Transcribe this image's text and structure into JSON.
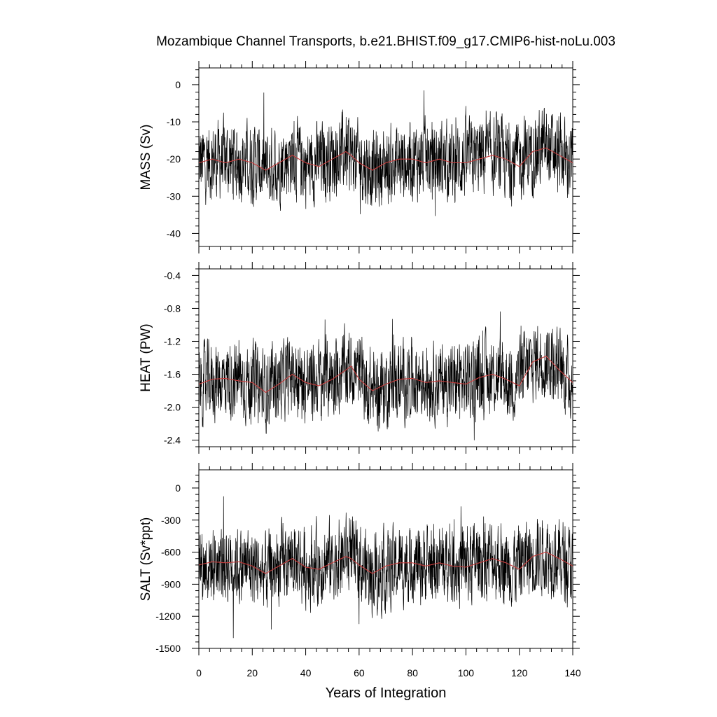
{
  "chart_data": [
    {
      "type": "line",
      "title": "Mozambique Channel Transports, b.e21.BHIST.f09_g17.CMIP6-hist-noLu.003",
      "ylabel": "MASS (Sv)",
      "xlabel": "",
      "xlim": [
        0,
        140
      ],
      "ylim": [
        -43.5,
        4.5
      ],
      "yticks": [
        0,
        -10,
        -20,
        -30,
        -40
      ],
      "ytick_labels": [
        "0",
        "-10",
        "-20",
        "-30",
        "-40"
      ],
      "x_step_years": 0.0833,
      "mean": -21,
      "series": [
        {
          "style": "raw-monthly",
          "color": "#000000",
          "range_min": -43.5,
          "range_max": 4.5,
          "anchors": [
            [
              0,
              -21
            ],
            [
              10,
              -20
            ],
            [
              20,
              -21
            ],
            [
              25,
              -23
            ],
            [
              35,
              -19
            ],
            [
              40,
              -22
            ],
            [
              55,
              -18
            ],
            [
              57,
              -19
            ],
            [
              65,
              -23
            ],
            [
              80,
              -20
            ],
            [
              95,
              -21
            ],
            [
              110,
              -19
            ],
            [
              118,
              -21
            ],
            [
              125,
              -18
            ],
            [
              130,
              -17
            ],
            [
              135,
              -19
            ],
            [
              140,
              -21
            ]
          ]
        },
        {
          "style": "running-mean",
          "color": "#c83c3c",
          "x": [
            0,
            5,
            10,
            15,
            20,
            25,
            30,
            35,
            40,
            45,
            50,
            55,
            57,
            60,
            65,
            70,
            75,
            80,
            85,
            90,
            95,
            100,
            105,
            110,
            115,
            120,
            125,
            130,
            135,
            140
          ],
          "values": [
            -21,
            -20,
            -21,
            -20,
            -21,
            -23,
            -21,
            -19,
            -21,
            -22,
            -20,
            -18,
            -19,
            -21,
            -23,
            -21,
            -20,
            -20,
            -21,
            -20,
            -21,
            -21,
            -20,
            -19,
            -20,
            -22,
            -18,
            -17,
            -19,
            -21
          ]
        }
      ]
    },
    {
      "type": "line",
      "title": "",
      "ylabel": "HEAT (PW)",
      "xlabel": "",
      "xlim": [
        0,
        140
      ],
      "ylim": [
        -2.48,
        -0.32
      ],
      "yticks": [
        -0.4,
        -0.8,
        -1.2,
        -1.6,
        -2.0,
        -2.4
      ],
      "ytick_labels": [
        "-0.4",
        "-0.8",
        "-1.2",
        "-1.6",
        "-2.0",
        "-2.4"
      ],
      "x_step_years": 0.0833,
      "mean": -1.7,
      "series": [
        {
          "style": "raw-monthly",
          "color": "#000000",
          "range_min": -2.48,
          "range_max": -0.32,
          "anchors": [
            [
              0,
              -1.72
            ],
            [
              10,
              -1.65
            ],
            [
              20,
              -1.7
            ],
            [
              25,
              -1.8
            ],
            [
              35,
              -1.6
            ],
            [
              40,
              -1.72
            ],
            [
              55,
              -1.55
            ],
            [
              57,
              -1.5
            ],
            [
              65,
              -1.8
            ],
            [
              80,
              -1.65
            ],
            [
              95,
              -1.7
            ],
            [
              110,
              -1.6
            ],
            [
              118,
              -1.7
            ],
            [
              125,
              -1.45
            ],
            [
              130,
              -1.38
            ],
            [
              135,
              -1.55
            ],
            [
              140,
              -1.7
            ]
          ]
        },
        {
          "style": "running-mean",
          "color": "#c83c3c",
          "x": [
            0,
            5,
            10,
            15,
            20,
            25,
            30,
            35,
            40,
            45,
            50,
            55,
            57,
            60,
            65,
            70,
            75,
            80,
            85,
            90,
            95,
            100,
            105,
            110,
            115,
            120,
            125,
            130,
            135,
            140
          ],
          "values": [
            -1.72,
            -1.66,
            -1.65,
            -1.68,
            -1.7,
            -1.82,
            -1.72,
            -1.6,
            -1.7,
            -1.74,
            -1.66,
            -1.55,
            -1.5,
            -1.66,
            -1.8,
            -1.72,
            -1.66,
            -1.65,
            -1.7,
            -1.68,
            -1.7,
            -1.72,
            -1.64,
            -1.6,
            -1.66,
            -1.74,
            -1.45,
            -1.38,
            -1.55,
            -1.7
          ]
        }
      ]
    },
    {
      "type": "line",
      "title": "",
      "ylabel": "SALT (Sv*ppt)",
      "xlabel": "Years of Integration",
      "xlim": [
        0,
        140
      ],
      "xticks": [
        0,
        20,
        40,
        60,
        80,
        100,
        120,
        140
      ],
      "xtick_labels": [
        "0",
        "20",
        "40",
        "60",
        "80",
        "100",
        "120",
        "140"
      ],
      "ylim": [
        -1500,
        170
      ],
      "yticks": [
        0,
        -300,
        -600,
        -900,
        -1200,
        -1500
      ],
      "ytick_labels": [
        "0",
        "-300",
        "-600",
        "-900",
        "-1200",
        "-1500"
      ],
      "x_step_years": 0.0833,
      "mean": -730,
      "series": [
        {
          "style": "raw-monthly",
          "color": "#000000",
          "range_min": -1500,
          "range_max": 170,
          "anchors": [
            [
              0,
              -720
            ],
            [
              10,
              -700
            ],
            [
              20,
              -730
            ],
            [
              25,
              -800
            ],
            [
              35,
              -660
            ],
            [
              40,
              -740
            ],
            [
              55,
              -640
            ],
            [
              57,
              -660
            ],
            [
              65,
              -800
            ],
            [
              80,
              -700
            ],
            [
              95,
              -730
            ],
            [
              110,
              -660
            ],
            [
              118,
              -730
            ],
            [
              125,
              -640
            ],
            [
              130,
              -600
            ],
            [
              135,
              -660
            ],
            [
              140,
              -730
            ]
          ]
        },
        {
          "style": "running-mean",
          "color": "#c83c3c",
          "x": [
            0,
            5,
            10,
            15,
            20,
            25,
            30,
            35,
            40,
            45,
            50,
            55,
            57,
            60,
            65,
            70,
            75,
            80,
            85,
            90,
            95,
            100,
            105,
            110,
            115,
            120,
            125,
            130,
            135,
            140
          ],
          "values": [
            -720,
            -690,
            -700,
            -690,
            -730,
            -800,
            -730,
            -660,
            -740,
            -760,
            -700,
            -640,
            -660,
            -720,
            -800,
            -730,
            -700,
            -700,
            -730,
            -700,
            -730,
            -740,
            -700,
            -660,
            -700,
            -760,
            -640,
            -600,
            -660,
            -730
          ]
        }
      ]
    }
  ]
}
